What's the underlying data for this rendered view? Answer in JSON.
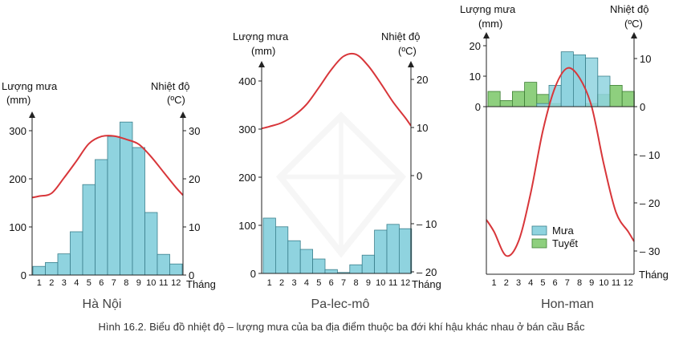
{
  "caption": "Hình 16.2. Biểu đồ nhiệt độ – lượng mưa của ba địa điểm thuộc ba đới khí hậu khác nhau ở bán cầu Bắc",
  "colors": {
    "rain": "#8fd3df",
    "rain_stroke": "#3a7f8c",
    "snow": "#8ecf7e",
    "snow_stroke": "#3e7f35",
    "temp": "#d8363a",
    "axis": "#222222"
  },
  "chart_data": [
    {
      "type": "bar",
      "title": "Hà Nội",
      "rain_label_1": "Lượng mưa",
      "rain_label_2": "(mm)",
      "temp_label_1": "Nhiệt độ",
      "temp_label_2": "(ºC)",
      "x_unit": "Tháng",
      "categories": [
        "1",
        "2",
        "3",
        "4",
        "5",
        "6",
        "7",
        "8",
        "9",
        "10",
        "11",
        "12"
      ],
      "rain": [
        18,
        26,
        44,
        90,
        188,
        240,
        288,
        318,
        265,
        130,
        43,
        23
      ],
      "temperature": [
        16.4,
        17.0,
        20.2,
        23.7,
        27.3,
        28.8,
        28.9,
        28.2,
        27.2,
        24.6,
        21.4,
        18.2
      ],
      "rain_ticks": [
        0,
        100,
        200,
        300
      ],
      "temp_ticks": [
        0,
        10,
        20,
        30
      ],
      "rain_ylim": [
        0,
        300
      ],
      "temp_ylim": [
        0,
        30
      ]
    },
    {
      "type": "bar",
      "title": "Pa-lec-mô",
      "rain_label_1": "Lượng mưa",
      "rain_label_2": "(mm)",
      "temp_label_1": "Nhiệt độ",
      "temp_label_2": "(ºC)",
      "x_unit": "Tháng",
      "categories": [
        "1",
        "2",
        "3",
        "4",
        "5",
        "6",
        "7",
        "8",
        "9",
        "10",
        "11",
        "12"
      ],
      "rain": [
        115,
        97,
        68,
        50,
        30,
        8,
        2,
        18,
        38,
        90,
        102,
        93
      ],
      "temperature": [
        10.2,
        11.0,
        12.5,
        14.8,
        18.3,
        22.0,
        24.8,
        25.2,
        22.8,
        19.2,
        15.3,
        12.0
      ],
      "rain_ticks": [
        0,
        100,
        200,
        300,
        400
      ],
      "temp_ticks": [
        -20,
        -10,
        0,
        10,
        20
      ],
      "rain_ylim": [
        0,
        450
      ],
      "temp_ylim": [
        -20,
        25
      ]
    },
    {
      "type": "bar",
      "title": "Hon-man",
      "rain_label_1": "Lượng mưa",
      "rain_label_2": "(mm)",
      "temp_label_1": "Nhiệt độ",
      "temp_label_2": "(ºC)",
      "x_unit": "Tháng",
      "categories": [
        "1",
        "2",
        "3",
        "4",
        "5",
        "6",
        "7",
        "8",
        "9",
        "10",
        "11",
        "12"
      ],
      "rain": [
        0,
        0,
        0,
        0,
        1,
        7,
        18,
        17,
        16,
        10,
        0,
        0
      ],
      "snow": [
        5,
        2,
        5,
        8,
        4,
        1,
        0,
        0,
        1,
        4,
        7,
        5
      ],
      "temperature": [
        -26,
        -31,
        -28,
        -18,
        -5,
        4,
        8,
        6,
        0,
        -12,
        -22,
        -26
      ],
      "rain_ticks": [
        0,
        10,
        20
      ],
      "temp_ticks": [
        -30,
        -20,
        -10,
        0,
        10
      ],
      "rain_ylim": [
        0,
        20
      ],
      "temp_ylim": [
        -35,
        10
      ],
      "legend": [
        "Mưa",
        "Tuyết"
      ]
    }
  ]
}
